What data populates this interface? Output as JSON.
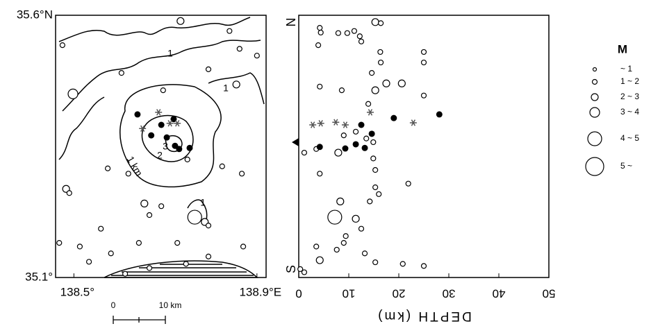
{
  "chart_data": [
    {
      "type": "map-scatter",
      "xlim": [
        138.46,
        138.92
      ],
      "ylim": [
        35.1,
        35.6
      ],
      "xticks": [
        {
          "value": 138.5,
          "label": "138.5°"
        },
        {
          "value": 138.9,
          "label": "138.9°E"
        }
      ],
      "yticks": [
        {
          "value": 35.1,
          "label": "35.1°"
        },
        {
          "value": 35.6,
          "label": "35.6°N"
        }
      ],
      "annotations": [
        "1",
        "1",
        "1 km",
        "2",
        "3",
        "1"
      ],
      "scale_bar": [
        "0",
        "10 km"
      ],
      "series": [
        {
          "marker": "open",
          "color": "#000000",
          "x": [
            138.475,
            138.498,
            138.733,
            138.84,
            138.862,
            138.9,
            138.794,
            138.604,
            138.695,
            138.855,
            138.574,
            138.483,
            138.49,
            138.824,
            138.867,
            138.654,
            138.691,
            138.764,
            138.786,
            138.794,
            138.665,
            138.559,
            138.468,
            138.513,
            138.581,
            138.533,
            138.642,
            138.726,
            138.794,
            138.87,
            138.748,
            138.619,
            138.745,
            138.665,
            138.612
          ],
          "y": [
            35.543,
            35.45,
            35.589,
            35.57,
            35.536,
            35.523,
            35.497,
            35.49,
            35.457,
            35.468,
            35.308,
            35.269,
            35.261,
            35.312,
            35.298,
            35.241,
            35.236,
            35.215,
            35.206,
            35.199,
            35.219,
            35.193,
            35.166,
            35.159,
            35.146,
            35.13,
            35.166,
            35.166,
            35.14,
            35.159,
            35.325,
            35.298,
            35.126,
            35.118,
            35.107
          ],
          "magnitude": [
            1.5,
            3.5,
            2.5,
            1.5,
            1.5,
            1.5,
            1.5,
            1.5,
            1.5,
            2.5,
            1.5,
            2.5,
            1.5,
            1.5,
            1.5,
            2.5,
            1.5,
            4.5,
            2.5,
            1.5,
            1.5,
            1.5,
            1.5,
            1.5,
            1.5,
            1.5,
            1.5,
            1.5,
            1.5,
            1.5,
            1.5,
            1.5,
            1.5,
            1.5,
            1.5
          ]
        },
        {
          "marker": "filled",
          "color": "#000000",
          "x": [
            138.639,
            138.691,
            138.718,
            138.669,
            138.703,
            138.721,
            138.73,
            138.753
          ],
          "y": [
            35.411,
            35.391,
            35.402,
            35.371,
            35.367,
            35.351,
            35.345,
            35.347
          ]
        },
        {
          "marker": "star",
          "color": "#555555",
          "x": [
            138.685,
            138.65,
            138.71,
            138.726
          ],
          "y": [
            35.415,
            35.384,
            35.394,
            35.394
          ]
        }
      ]
    },
    {
      "type": "depth-scatter",
      "xlabel": "DEPTH (km)",
      "xlim": [
        0,
        50
      ],
      "ylim": [
        35.1,
        35.6
      ],
      "xticks": [
        0,
        10,
        20,
        30,
        40,
        50
      ],
      "y_end_labels": [
        "S",
        "N"
      ],
      "series": [
        {
          "marker": "open",
          "color": "#000000",
          "x": [
            4.2,
            4.4,
            7.9,
            9.7,
            11.1,
            12.2,
            12.5,
            15.3,
            16.4,
            16.3,
            16.4,
            25.0,
            25.0,
            3.9,
            14.6,
            17.5,
            20.6,
            15.3,
            8.6,
            4.2,
            25.0,
            13.9,
            9.0,
            11.4,
            13.5,
            14.9,
            1.1,
            3.5,
            7.9,
            14.9,
            15.3,
            4.2,
            15.3,
            16.0,
            14.2,
            8.3,
            7.2,
            11.4,
            12.5,
            9.4,
            9.0,
            3.5,
            7.6,
            13.2,
            4.2,
            15.3,
            20.8,
            25.0,
            1.1,
            0.3,
            21.9
          ],
          "y": [
            35.576,
            35.567,
            35.566,
            35.566,
            35.57,
            35.56,
            35.55,
            35.587,
            35.585,
            35.53,
            35.51,
            35.53,
            35.51,
            35.543,
            35.49,
            35.47,
            35.47,
            35.457,
            35.457,
            35.464,
            35.447,
            35.431,
            35.371,
            35.378,
            35.365,
            35.358,
            35.338,
            35.345,
            35.338,
            35.327,
            35.305,
            35.298,
            35.272,
            35.259,
            35.245,
            35.245,
            35.215,
            35.212,
            35.193,
            35.179,
            35.166,
            35.159,
            35.153,
            35.146,
            35.133,
            35.129,
            35.126,
            35.122,
            35.11,
            35.116,
            35.279
          ],
          "magnitude": [
            1.5,
            1.5,
            1.5,
            1.5,
            1.5,
            1.5,
            1.5,
            2.5,
            1.5,
            1.5,
            1.5,
            1.5,
            1.5,
            1.5,
            1.5,
            2.5,
            2.5,
            2.5,
            1.5,
            1.5,
            1.5,
            1.5,
            1.5,
            1.5,
            1.5,
            1.5,
            1.5,
            1.5,
            2.5,
            1.5,
            1.5,
            1.5,
            1.5,
            1.5,
            1.5,
            2.5,
            4.5,
            2.5,
            1.5,
            1.5,
            1.5,
            1.5,
            1.5,
            1.5,
            2.5,
            1.5,
            1.5,
            1.5,
            1.5,
            1.5,
            1.5
          ]
        },
        {
          "marker": "filled",
          "color": "#000000",
          "x": [
            4.2,
            9.3,
            11.4,
            13.2,
            12.5,
            14.6,
            19.0,
            28.1
          ],
          "y": [
            35.349,
            35.346,
            35.354,
            35.347,
            35.391,
            35.374,
            35.404,
            35.411
          ]
        },
        {
          "marker": "star",
          "color": "#555555",
          "x": [
            2.8,
            4.4,
            7.4,
            9.3,
            14.3,
            22.9
          ],
          "y": [
            35.391,
            35.394,
            35.396,
            35.391,
            35.415,
            35.395
          ]
        }
      ]
    }
  ],
  "size_legend": {
    "title": "M",
    "labels": [
      "~ 1",
      "1 ~ 2",
      "2 ~ 3",
      "3 ~ 4",
      "4 ~ 5",
      "5 ~"
    ]
  }
}
